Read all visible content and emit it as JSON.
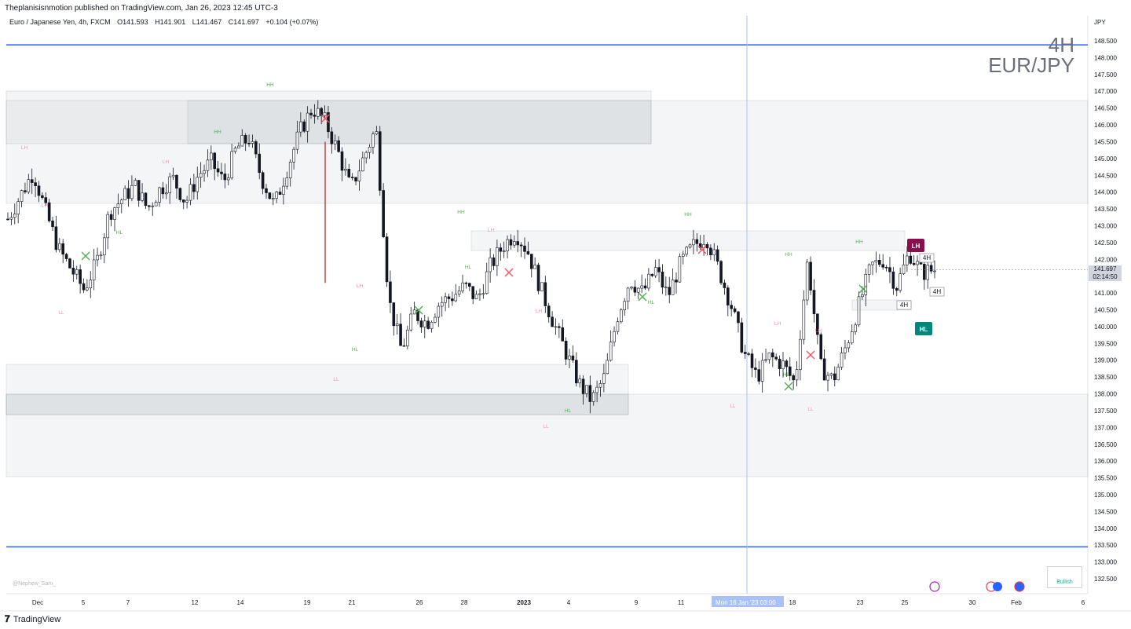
{
  "header": {
    "published_by": "Theplanisisnmotion published on TradingView.com, Jan 26, 2023 12:45 UTC-3",
    "symbol_desc": "Euro / Japanese Yen, 4h, FXCM",
    "open": "O141.593",
    "high": "H141.901",
    "low": "L141.467",
    "close": "C141.697",
    "change": "+0.104 (+0.07%)"
  },
  "watermark": {
    "timeframe": "4H",
    "pair": "EUR/JPY"
  },
  "author_tag": "@Nephew_Sam_",
  "footer": {
    "brand": "TradingView",
    "logo_glyph": "𝟕"
  },
  "bullish_label": "Bullish",
  "price_tag": {
    "price": "141.697",
    "countdown": "02:14:50"
  },
  "crosshair_label": "Mon 16 Jan '23   03:00",
  "colors": {
    "bull": "#22ab94",
    "bear": "#f7525f",
    "hh": "#4caf50",
    "ll": "#f48fb1",
    "level": "#2962ff",
    "lh_badge": "#880e4f",
    "hl_badge": "#00897b"
  },
  "chart_data": {
    "type": "candlestick",
    "currency": "JPY",
    "interval": "4h",
    "y_ticks": [
      "148.500",
      "148.000",
      "147.500",
      "147.000",
      "146.500",
      "146.000",
      "145.500",
      "145.000",
      "144.500",
      "144.000",
      "143.500",
      "143.000",
      "142.500",
      "142.000",
      "141.500",
      "141.000",
      "140.500",
      "140.000",
      "139.500",
      "139.000",
      "138.500",
      "138.000",
      "137.500",
      "137.000",
      "136.500",
      "136.000",
      "135.500",
      "135.000",
      "134.500",
      "134.000",
      "133.500",
      "133.000",
      "132.500"
    ],
    "ylim": [
      132.3,
      148.8
    ],
    "x_ticks": [
      "Dec",
      "5",
      "7",
      "12",
      "14",
      "19",
      "21",
      "26",
      "28",
      "2023",
      "4",
      "9",
      "11",
      "Mon 16 Jan '23   03:00",
      "18",
      "23",
      "25",
      "30",
      "Feb",
      "6"
    ],
    "close_path": [
      143.2,
      143.9,
      144.6,
      143.4,
      142.3,
      141.7,
      141.1,
      141.9,
      143.4,
      143.8,
      144.2,
      143.5,
      144.1,
      144.4,
      143.7,
      144.5,
      144.9,
      144.3,
      145.3,
      145.6,
      144.4,
      143.6,
      144.7,
      145.8,
      146.5,
      146.1,
      145.2,
      144.1,
      145.0,
      145.9,
      140.8,
      139.3,
      140.4,
      140.1,
      140.7,
      140.9,
      141.2,
      140.8,
      141.8,
      142.4,
      142.8,
      142.2,
      141.1,
      140.1,
      139.2,
      138.3,
      137.8,
      138.5,
      140.3,
      141.4,
      141.0,
      141.7,
      140.9,
      141.9,
      142.4,
      142.7,
      141.7,
      140.6,
      139.2,
      138.5,
      139.1,
      138.9,
      138.3,
      142.0,
      138.8,
      138.4,
      139.4,
      140.6,
      141.8,
      142.0,
      141.2,
      142.2,
      141.6,
      141.697
    ],
    "levels": [
      {
        "price": 148.38,
        "label": ""
      },
      {
        "price": 133.45,
        "label": ""
      }
    ],
    "structure_labels": [
      "HH",
      "HH",
      "LH",
      "LH",
      "HH",
      "HH",
      "LH",
      "LH",
      "HL",
      "LL",
      "LL",
      "HL",
      "LH",
      "HH",
      "HH",
      "LH",
      "LL",
      "HL",
      "HL",
      "LL",
      "HL",
      "LL",
      "LH",
      "LH",
      "HL"
    ],
    "badges": [
      {
        "text": "LH"
      },
      {
        "text": "HL"
      },
      {
        "text": "4H"
      },
      {
        "text": "4H"
      },
      {
        "text": "4H"
      }
    ]
  }
}
